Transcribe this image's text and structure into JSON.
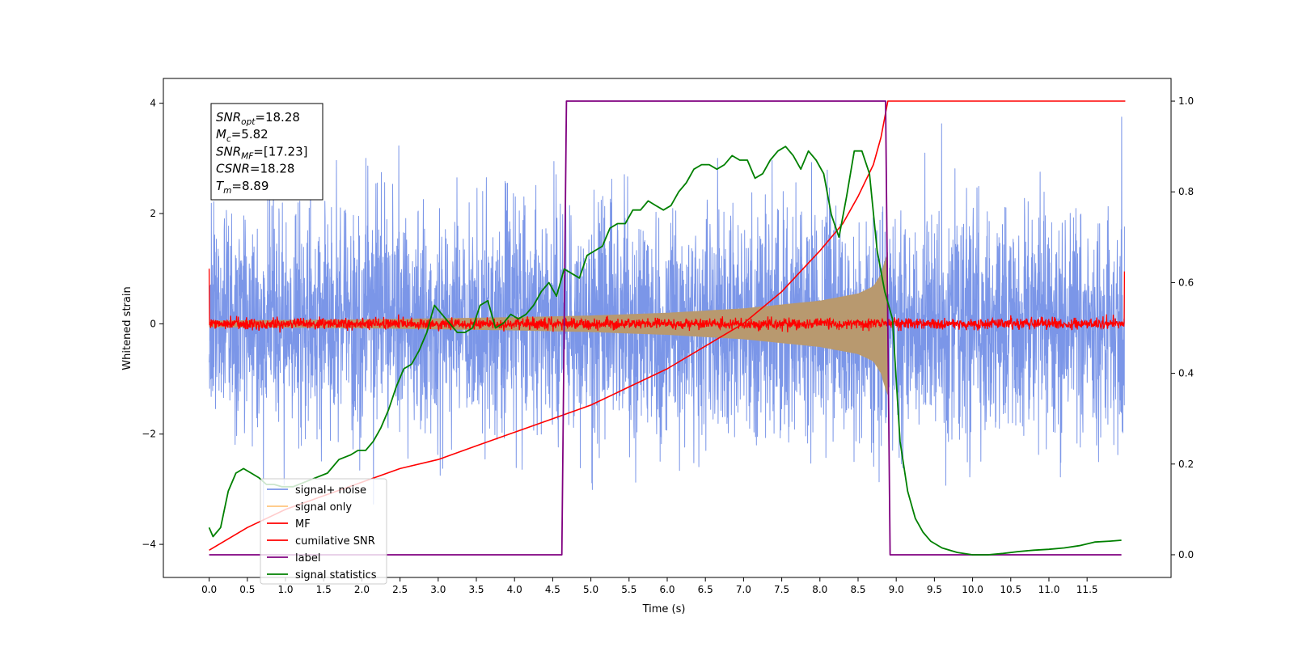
{
  "chart_data": {
    "type": "line",
    "xlabel": "Time (s)",
    "ylabel": "Whitened strain",
    "xlim": [
      -0.6,
      12.6
    ],
    "ylim_left": [
      -4.6,
      4.45
    ],
    "ylim_right": [
      -0.05,
      1.05
    ],
    "x_ticks": [
      "0.0",
      "0.5",
      "1.0",
      "1.5",
      "2.0",
      "2.5",
      "3.0",
      "3.5",
      "4.0",
      "4.5",
      "5.0",
      "5.5",
      "6.0",
      "6.5",
      "7.0",
      "7.5",
      "8.0",
      "8.5",
      "9.0",
      "9.5",
      "10.0",
      "10.5",
      "11.0",
      "11.5"
    ],
    "y_ticks_left": [
      "4",
      "2",
      "0",
      "−2",
      "−4"
    ],
    "y_ticks_right": [
      "1.0",
      "0.8",
      "0.6",
      "0.4",
      "0.2",
      "0.0"
    ],
    "grid": false,
    "legend_position": "lower-left",
    "annotation": {
      "lines": [
        {
          "base": "SNR",
          "sub": "opt",
          "rest": "=18.28"
        },
        {
          "base": "M",
          "sub": "c",
          "rest": "=5.82"
        },
        {
          "base": "SNR",
          "sub": "MF",
          "rest": "=[17.23]"
        },
        {
          "base": "CSNR",
          "sub": "",
          "rest": "=18.28"
        },
        {
          "base": "T",
          "sub": "m",
          "rest": "=8.89"
        }
      ]
    },
    "series": [
      {
        "name": "signal+ noise",
        "color": "#7b96e8",
        "axis": "left",
        "kind": "noise",
        "x_range": [
          0,
          11.99
        ],
        "amplitude_typical": 1.4,
        "amplitude_peak": 4.0
      },
      {
        "name": "signal only",
        "color": "#ffc47d",
        "axis": "left",
        "kind": "chirp",
        "x": [
          0,
          2,
          4,
          5,
          6,
          7,
          8,
          8.5,
          8.7,
          8.8,
          8.85,
          8.89
        ],
        "envelope": [
          0.06,
          0.08,
          0.12,
          0.15,
          0.2,
          0.28,
          0.42,
          0.55,
          0.68,
          0.9,
          1.15,
          1.3
        ]
      },
      {
        "name": "MF",
        "color": "#ff0000",
        "axis": "left",
        "kind": "noise",
        "x_range": [
          0,
          11.99
        ],
        "amplitude_typical": 0.05,
        "amplitude_peak": 0.18,
        "edge_values": [
          1.0,
          0.95
        ]
      },
      {
        "name": "cumilative SNR",
        "color": "#ff0000",
        "axis": "right",
        "x": [
          0,
          0.5,
          1,
          1.5,
          2,
          2.5,
          3,
          3.5,
          4,
          4.5,
          5,
          5.5,
          6,
          6.5,
          7,
          7.5,
          8,
          8.3,
          8.5,
          8.7,
          8.8,
          8.89,
          8.9,
          12
        ],
        "y": [
          0.01,
          0.06,
          0.1,
          0.13,
          0.16,
          0.19,
          0.21,
          0.24,
          0.27,
          0.3,
          0.33,
          0.37,
          0.41,
          0.46,
          0.51,
          0.58,
          0.67,
          0.73,
          0.79,
          0.86,
          0.92,
          1.0,
          1.0,
          1.0
        ]
      },
      {
        "name": "label",
        "color": "#800080",
        "axis": "right",
        "x": [
          0,
          4.62,
          4.68,
          8.86,
          8.92,
          11.95
        ],
        "y": [
          0,
          0,
          1,
          1,
          0,
          0
        ]
      },
      {
        "name": "signal statistics",
        "color": "#008000",
        "axis": "right",
        "x": [
          0,
          0.05,
          0.15,
          0.25,
          0.35,
          0.45,
          0.55,
          0.65,
          0.75,
          0.85,
          0.95,
          1.1,
          1.25,
          1.4,
          1.55,
          1.7,
          1.85,
          1.95,
          2.05,
          2.15,
          2.25,
          2.35,
          2.45,
          2.55,
          2.65,
          2.75,
          2.85,
          2.95,
          3.05,
          3.15,
          3.25,
          3.35,
          3.45,
          3.55,
          3.65,
          3.75,
          3.85,
          3.95,
          4.05,
          4.15,
          4.25,
          4.35,
          4.45,
          4.55,
          4.65,
          4.75,
          4.85,
          4.95,
          5.05,
          5.15,
          5.25,
          5.35,
          5.45,
          5.55,
          5.65,
          5.75,
          5.85,
          5.95,
          6.05,
          6.15,
          6.25,
          6.35,
          6.45,
          6.55,
          6.65,
          6.75,
          6.85,
          6.95,
          7.05,
          7.15,
          7.25,
          7.35,
          7.45,
          7.55,
          7.65,
          7.75,
          7.85,
          7.95,
          8.05,
          8.15,
          8.25,
          8.35,
          8.45,
          8.55,
          8.65,
          8.75,
          8.85,
          8.95,
          9.05,
          9.15,
          9.25,
          9.35,
          9.45,
          9.6,
          9.8,
          10.0,
          10.2,
          10.4,
          10.6,
          10.8,
          11.0,
          11.2,
          11.4,
          11.6,
          11.8,
          11.95
        ],
        "y": [
          0.06,
          0.04,
          0.06,
          0.14,
          0.18,
          0.19,
          0.18,
          0.17,
          0.155,
          0.155,
          0.15,
          0.15,
          0.16,
          0.17,
          0.18,
          0.21,
          0.22,
          0.23,
          0.23,
          0.25,
          0.28,
          0.32,
          0.37,
          0.41,
          0.42,
          0.45,
          0.49,
          0.55,
          0.53,
          0.51,
          0.49,
          0.49,
          0.5,
          0.55,
          0.56,
          0.5,
          0.51,
          0.53,
          0.52,
          0.53,
          0.55,
          0.58,
          0.6,
          0.57,
          0.63,
          0.62,
          0.61,
          0.66,
          0.67,
          0.68,
          0.72,
          0.73,
          0.73,
          0.76,
          0.76,
          0.78,
          0.77,
          0.76,
          0.77,
          0.8,
          0.82,
          0.85,
          0.86,
          0.86,
          0.85,
          0.86,
          0.88,
          0.87,
          0.87,
          0.83,
          0.84,
          0.87,
          0.89,
          0.9,
          0.88,
          0.85,
          0.89,
          0.87,
          0.84,
          0.75,
          0.7,
          0.79,
          0.89,
          0.89,
          0.84,
          0.67,
          0.58,
          0.52,
          0.25,
          0.14,
          0.08,
          0.05,
          0.03,
          0.015,
          0.005,
          0.0,
          0.0,
          0.003,
          0.007,
          0.01,
          0.012,
          0.015,
          0.02,
          0.028,
          0.03,
          0.032
        ]
      }
    ]
  }
}
